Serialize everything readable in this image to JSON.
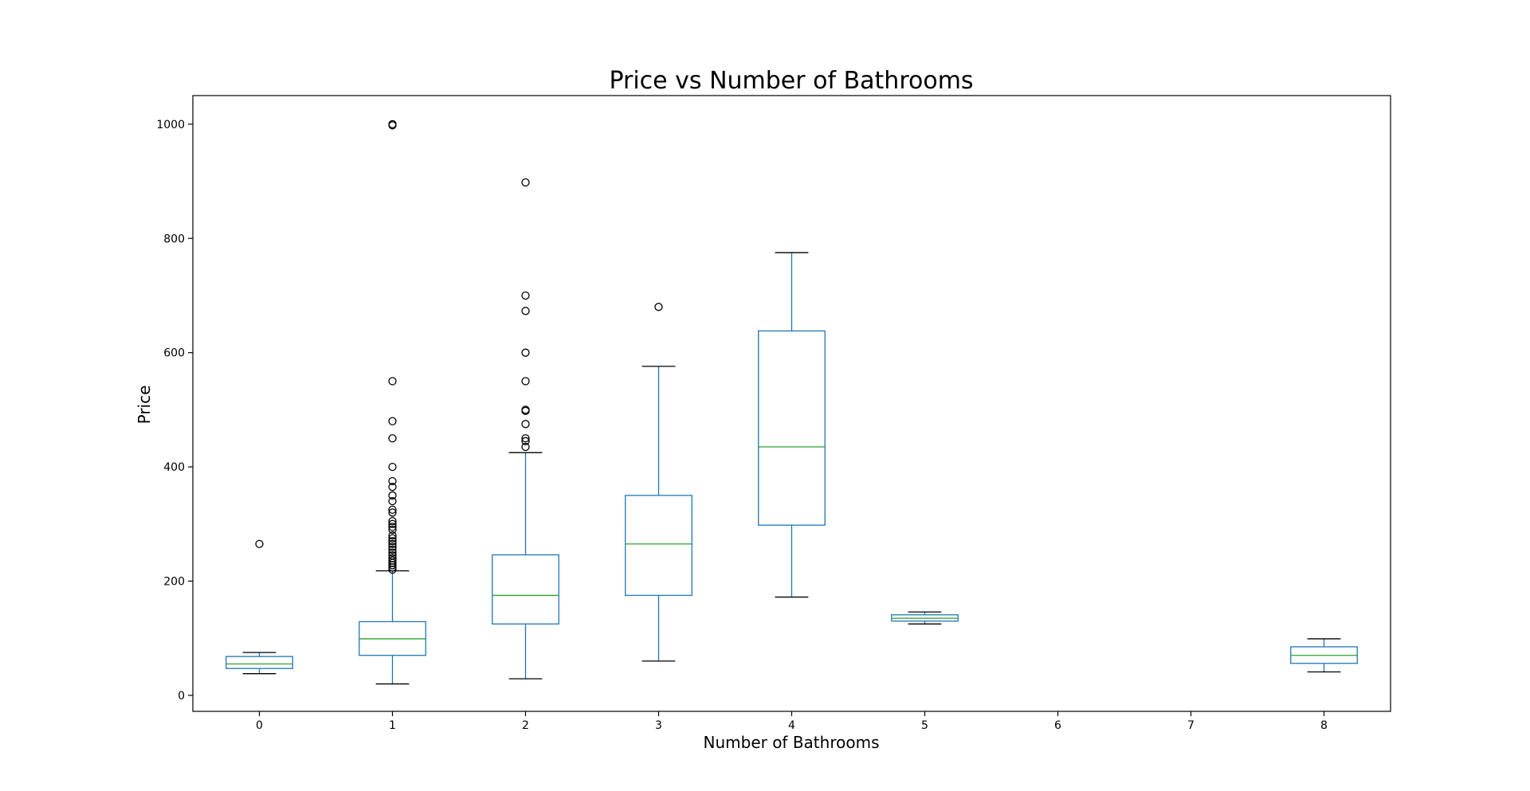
{
  "chart_data": {
    "type": "box",
    "title": "Price vs Number of Bathrooms",
    "xlabel": "Number of Bathrooms",
    "ylabel": "Price",
    "ylim": [
      -28,
      1050
    ],
    "yticks": [
      0,
      200,
      400,
      600,
      800,
      1000
    ],
    "categories": [
      "0",
      "1",
      "2",
      "3",
      "4",
      "5",
      "6",
      "7",
      "8"
    ],
    "grid": false,
    "colors": {
      "box": "#1f77b4",
      "median": "#2ca02c",
      "cap": "#000000",
      "flier": "#000000"
    },
    "boxes": [
      {
        "category": "0",
        "whisker_low": 38,
        "q1": 47,
        "median": 55,
        "q3": 68,
        "whisker_high": 75,
        "outliers": [
          265
        ]
      },
      {
        "category": "1",
        "whisker_low": 20,
        "q1": 70,
        "median": 99,
        "q3": 129,
        "whisker_high": 218,
        "outliers": [
          220,
          224,
          228,
          232,
          236,
          240,
          245,
          250,
          255,
          260,
          265,
          270,
          275,
          280,
          290,
          295,
          300,
          305,
          320,
          325,
          340,
          350,
          365,
          375,
          400,
          450,
          480,
          550,
          998,
          1000
        ]
      },
      {
        "category": "2",
        "whisker_low": 29,
        "q1": 125,
        "median": 175,
        "q3": 246,
        "whisker_high": 425,
        "outliers": [
          435,
          445,
          450,
          475,
          498,
          500,
          550,
          600,
          673,
          700,
          898
        ]
      },
      {
        "category": "3",
        "whisker_low": 60,
        "q1": 175,
        "median": 265,
        "q3": 350,
        "whisker_high": 576,
        "outliers": [
          680
        ]
      },
      {
        "category": "4",
        "whisker_low": 172,
        "q1": 298,
        "median": 435,
        "q3": 638,
        "whisker_high": 775,
        "outliers": []
      },
      {
        "category": "5",
        "whisker_low": 125,
        "q1": 130,
        "median": 135,
        "q3": 141,
        "whisker_high": 146,
        "outliers": []
      },
      {
        "category": "8",
        "whisker_low": 41,
        "q1": 56,
        "median": 70,
        "q3": 85,
        "whisker_high": 99,
        "outliers": []
      }
    ]
  }
}
